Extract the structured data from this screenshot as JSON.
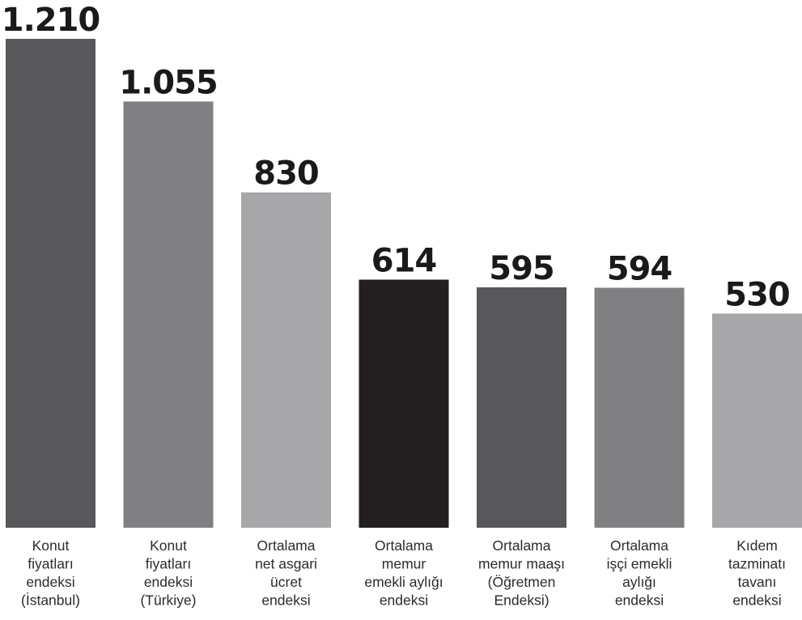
{
  "chart_data": {
    "type": "bar",
    "categories": [
      [
        "Konut",
        "fiyatları",
        "endeksi",
        "(İstanbul)"
      ],
      [
        "Konut",
        "fiyatları",
        "endeksi",
        "(Türkiye)"
      ],
      [
        "Ortalama",
        "net asgari",
        "ücret",
        "endeksi"
      ],
      [
        "Ortalama",
        "memur",
        "emekli aylığı",
        "endeksi"
      ],
      [
        "Ortalama",
        "memur maaşı",
        "(Öğretmen",
        "Endeksi)"
      ],
      [
        "Ortalama",
        "işçi emekli",
        "aylığı",
        "endeksi"
      ],
      [
        "Kıdem",
        "tazminatı",
        "tavanı",
        "endeksi"
      ]
    ],
    "values": [
      1210,
      1055,
      830,
      614,
      595,
      594,
      530
    ],
    "value_labels": [
      "1.210",
      "1.055",
      "830",
      "614",
      "595",
      "594",
      "530"
    ],
    "colors": [
      "#58585a",
      "#808083",
      "#a7a7aa",
      "#231f20",
      "#58585a",
      "#808083",
      "#a7a7aa"
    ],
    "ylim": [
      0,
      1210
    ],
    "grid": false,
    "legend": "none"
  }
}
